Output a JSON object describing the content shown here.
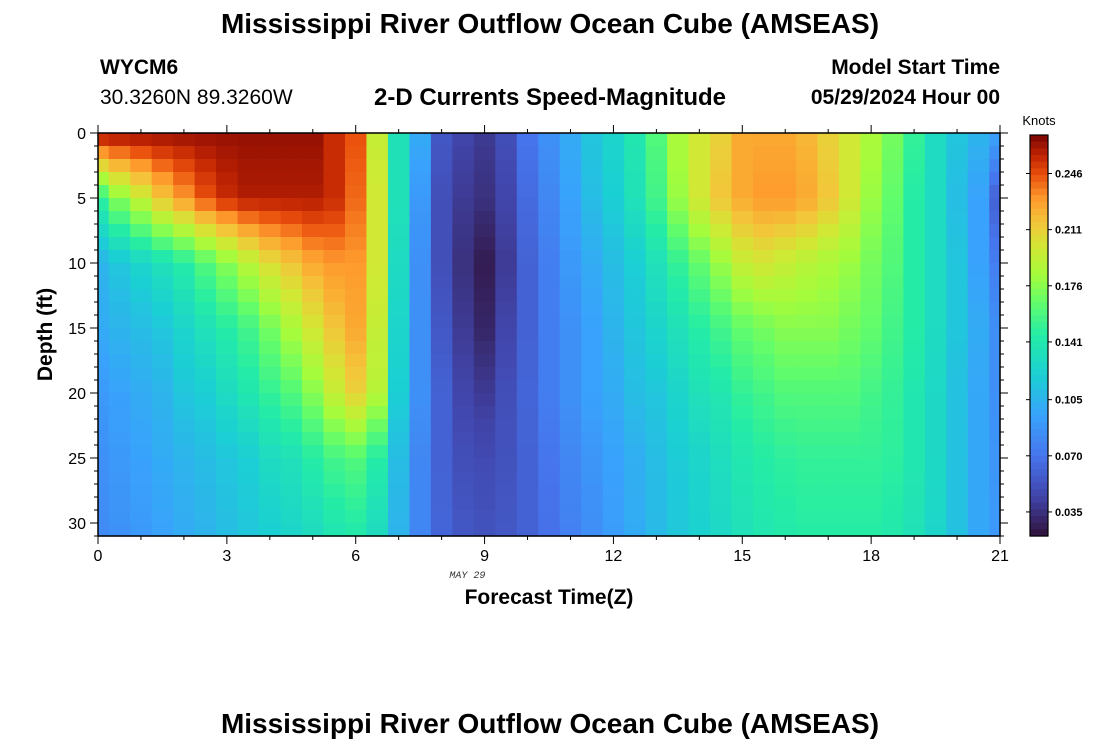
{
  "header": {
    "title": "Mississippi River Outflow Ocean Cube (AMSEAS)",
    "station_id": "WYCM6",
    "station_coords": "30.3260N  89.3260W",
    "plot_title": "2-D Currents Speed-Magnitude",
    "model_start_label": "Model Start Time",
    "model_start_value": "05/29/2024 Hour 00"
  },
  "footer": {
    "title": "Mississippi River Outflow Ocean Cube (AMSEAS)"
  },
  "chart_data": {
    "type": "heatmap",
    "xlabel": "Forecast Time(Z)",
    "ylabel": "Depth (ft)",
    "date_label": "MAY 29",
    "x_ticks": [
      0,
      3,
      6,
      9,
      12,
      15,
      18,
      21
    ],
    "y_ticks": [
      0,
      5,
      10,
      15,
      20,
      25,
      30
    ],
    "xlim": [
      0,
      21
    ],
    "ylim": [
      31,
      0
    ],
    "colorbar": {
      "label": "Knots",
      "ticks": [
        "0.246",
        "0.211",
        "0.176",
        "0.141",
        "0.105",
        "0.070",
        "0.035"
      ],
      "range": [
        0.02,
        0.27
      ]
    },
    "hours": [
      0,
      0.5,
      1,
      1.5,
      2,
      2.5,
      3,
      3.5,
      4,
      4.5,
      5,
      5.5,
      6,
      6.5,
      7,
      7.5,
      8,
      8.5,
      9,
      9.5,
      10,
      10.5,
      11,
      11.5,
      12,
      12.5,
      13,
      13.5,
      14,
      14.5,
      15,
      15.5,
      16,
      16.5,
      17,
      17.5,
      18,
      18.5,
      19,
      19.5,
      20,
      20.5,
      21
    ],
    "depth_profiles": [
      {
        "depth": 0,
        "speeds": [
          0.265,
          0.265,
          0.265,
          0.265,
          0.265,
          0.265,
          0.265,
          0.265,
          0.265,
          0.265,
          0.265,
          0.255,
          0.245,
          0.195,
          0.135,
          0.1,
          0.055,
          0.045,
          0.04,
          0.05,
          0.07,
          0.085,
          0.1,
          0.115,
          0.125,
          0.14,
          0.16,
          0.185,
          0.2,
          0.21,
          0.225,
          0.225,
          0.225,
          0.22,
          0.21,
          0.2,
          0.185,
          0.17,
          0.15,
          0.13,
          0.115,
          0.105,
          0.095
        ]
      },
      {
        "depth": 5,
        "speeds": [
          0.15,
          0.175,
          0.195,
          0.215,
          0.23,
          0.245,
          0.255,
          0.26,
          0.26,
          0.26,
          0.26,
          0.255,
          0.24,
          0.2,
          0.135,
          0.09,
          0.05,
          0.04,
          0.035,
          0.045,
          0.065,
          0.08,
          0.095,
          0.11,
          0.12,
          0.135,
          0.155,
          0.18,
          0.2,
          0.215,
          0.225,
          0.23,
          0.23,
          0.225,
          0.215,
          0.2,
          0.18,
          0.165,
          0.145,
          0.13,
          0.11,
          0.095,
          0.06
        ]
      },
      {
        "depth": 10,
        "speeds": [
          0.105,
          0.115,
          0.125,
          0.135,
          0.145,
          0.16,
          0.175,
          0.19,
          0.205,
          0.215,
          0.225,
          0.23,
          0.23,
          0.2,
          0.13,
          0.085,
          0.05,
          0.035,
          0.025,
          0.04,
          0.06,
          0.075,
          0.09,
          0.1,
          0.11,
          0.12,
          0.135,
          0.15,
          0.165,
          0.18,
          0.195,
          0.2,
          0.195,
          0.19,
          0.185,
          0.18,
          0.17,
          0.16,
          0.145,
          0.13,
          0.115,
          0.095,
          0.075
        ]
      },
      {
        "depth": 15,
        "speeds": [
          0.1,
          0.105,
          0.11,
          0.115,
          0.125,
          0.135,
          0.145,
          0.155,
          0.17,
          0.185,
          0.2,
          0.215,
          0.225,
          0.195,
          0.125,
          0.085,
          0.055,
          0.04,
          0.03,
          0.045,
          0.06,
          0.075,
          0.085,
          0.095,
          0.105,
          0.115,
          0.125,
          0.135,
          0.145,
          0.155,
          0.165,
          0.17,
          0.175,
          0.175,
          0.175,
          0.17,
          0.165,
          0.155,
          0.145,
          0.13,
          0.115,
          0.1,
          0.085
        ]
      },
      {
        "depth": 20,
        "speeds": [
          0.09,
          0.095,
          0.1,
          0.105,
          0.115,
          0.12,
          0.13,
          0.14,
          0.15,
          0.16,
          0.175,
          0.195,
          0.21,
          0.19,
          0.12,
          0.085,
          0.06,
          0.045,
          0.04,
          0.05,
          0.062,
          0.075,
          0.085,
          0.095,
          0.1,
          0.11,
          0.115,
          0.125,
          0.135,
          0.14,
          0.15,
          0.155,
          0.16,
          0.16,
          0.16,
          0.16,
          0.155,
          0.15,
          0.14,
          0.128,
          0.112,
          0.098,
          0.085
        ]
      },
      {
        "depth": 25,
        "speeds": [
          0.085,
          0.09,
          0.095,
          0.1,
          0.105,
          0.11,
          0.115,
          0.12,
          0.13,
          0.135,
          0.145,
          0.155,
          0.16,
          0.145,
          0.11,
          0.08,
          0.06,
          0.05,
          0.048,
          0.052,
          0.06,
          0.07,
          0.08,
          0.088,
          0.095,
          0.102,
          0.11,
          0.118,
          0.125,
          0.132,
          0.14,
          0.145,
          0.148,
          0.15,
          0.15,
          0.15,
          0.15,
          0.148,
          0.14,
          0.128,
          0.112,
          0.098,
          0.088
        ]
      },
      {
        "depth": 31,
        "speeds": [
          0.082,
          0.086,
          0.09,
          0.095,
          0.1,
          0.105,
          0.11,
          0.115,
          0.12,
          0.125,
          0.13,
          0.138,
          0.142,
          0.13,
          0.105,
          0.08,
          0.062,
          0.055,
          0.052,
          0.055,
          0.06,
          0.068,
          0.076,
          0.084,
          0.092,
          0.1,
          0.108,
          0.116,
          0.122,
          0.128,
          0.135,
          0.14,
          0.143,
          0.145,
          0.145,
          0.145,
          0.145,
          0.142,
          0.136,
          0.126,
          0.112,
          0.098,
          0.09
        ]
      }
    ]
  }
}
